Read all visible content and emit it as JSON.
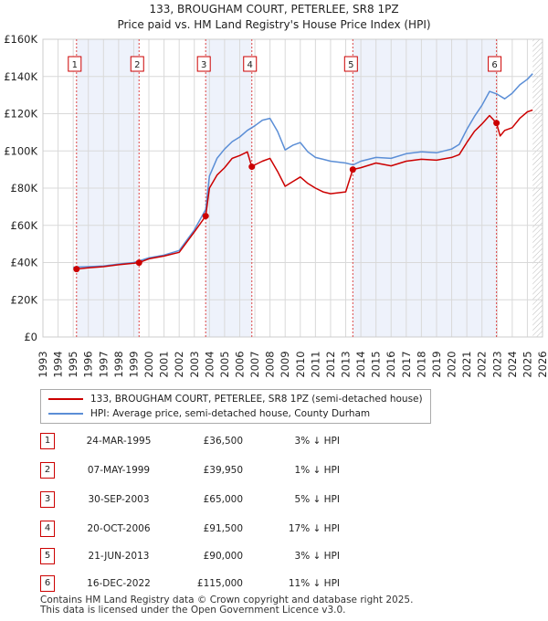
{
  "chart_data": {
    "type": "line",
    "title": "133, BROUGHAM COURT, PETERLEE, SR8 1PZ",
    "subtitle": "Price paid vs. HM Land Registry's House Price Index (HPI)",
    "x_range": [
      1993,
      2026
    ],
    "ylim": [
      0,
      160000
    ],
    "y_ticks": [
      0,
      20000,
      40000,
      60000,
      80000,
      100000,
      120000,
      140000,
      160000
    ],
    "y_tick_labels": [
      "£0",
      "£20K",
      "£40K",
      "£60K",
      "£80K",
      "£100K",
      "£120K",
      "£140K",
      "£160K"
    ],
    "x_ticks": [
      1993,
      1994,
      1995,
      1996,
      1997,
      1998,
      1999,
      2000,
      2001,
      2002,
      2003,
      2004,
      2005,
      2006,
      2007,
      2008,
      2009,
      2010,
      2011,
      2012,
      2013,
      2014,
      2015,
      2016,
      2017,
      2018,
      2019,
      2020,
      2021,
      2022,
      2023,
      2024,
      2025,
      2026
    ],
    "x_tick_labels": [
      "1993",
      "1994",
      "1995",
      "1996",
      "1997",
      "1998",
      "1999",
      "2000",
      "2001",
      "2002",
      "2003",
      "2004",
      "2005",
      "2006",
      "2007",
      "2008",
      "2009",
      "2010",
      "2011",
      "2012",
      "2013",
      "2014",
      "2015",
      "2016",
      "2017",
      "2018",
      "2019",
      "2020",
      "2021",
      "2022",
      "2023",
      "2024",
      "2025",
      "2026"
    ],
    "grid": true,
    "shaded_periods": [
      [
        1995.22,
        1999.35
      ],
      [
        2003.75,
        2006.8
      ],
      [
        2013.47,
        2022.96
      ]
    ],
    "shade_color": "#eef2fb",
    "data_end_x": 2025.35,
    "series": [
      {
        "name": "133, BROUGHAM COURT, PETERLEE, SR8 1PZ (semi-detached house)",
        "color": "#cc0000",
        "x": [
          1995.22,
          1996.0,
          1997.0,
          1998.0,
          1999.0,
          1999.35,
          2000.0,
          2001.0,
          2002.0,
          2003.0,
          2003.75,
          2004.0,
          2004.5,
          2005.0,
          2005.5,
          2006.0,
          2006.5,
          2006.8,
          2007.0,
          2007.5,
          2008.0,
          2008.5,
          2009.0,
          2009.5,
          2010.0,
          2010.5,
          2011.0,
          2011.5,
          2012.0,
          2012.5,
          2013.0,
          2013.47,
          2014.0,
          2015.0,
          2016.0,
          2017.0,
          2018.0,
          2019.0,
          2020.0,
          2020.5,
          2021.0,
          2021.5,
          2022.0,
          2022.5,
          2022.96,
          2023.2,
          2023.5,
          2024.0,
          2024.5,
          2025.0,
          2025.35
        ],
        "y": [
          36500,
          37200,
          37800,
          38800,
          39600,
          39950,
          42000,
          43500,
          45500,
          56500,
          65000,
          80000,
          87000,
          91000,
          96000,
          97500,
          99500,
          91500,
          92500,
          94500,
          96000,
          89000,
          81000,
          83500,
          86000,
          82500,
          80000,
          78000,
          77000,
          77500,
          78000,
          90000,
          91000,
          93500,
          92000,
          94500,
          95500,
          95000,
          96500,
          98000,
          104500,
          110500,
          114500,
          119000,
          115000,
          108000,
          111000,
          112500,
          117500,
          121000,
          122000
        ]
      },
      {
        "name": "HPI: Average price, semi-detached house, County Durham",
        "color": "#5b8ed6",
        "x": [
          1995.0,
          1996.0,
          1997.0,
          1998.0,
          1999.0,
          2000.0,
          2001.0,
          2002.0,
          2003.0,
          2003.75,
          2004.0,
          2004.5,
          2005.0,
          2005.5,
          2006.0,
          2006.5,
          2007.0,
          2007.5,
          2008.0,
          2008.5,
          2009.0,
          2009.5,
          2010.0,
          2010.5,
          2011.0,
          2011.5,
          2012.0,
          2012.5,
          2013.0,
          2013.5,
          2014.0,
          2015.0,
          2016.0,
          2017.0,
          2018.0,
          2019.0,
          2020.0,
          2020.5,
          2021.0,
          2021.5,
          2022.0,
          2022.5,
          2023.0,
          2023.5,
          2024.0,
          2024.5,
          2025.0,
          2025.35
        ],
        "y": [
          37500,
          37800,
          38200,
          39200,
          40000,
          42500,
          44000,
          46500,
          57500,
          68500,
          86500,
          96000,
          101000,
          105000,
          107500,
          111000,
          113500,
          116500,
          117500,
          110500,
          100500,
          103000,
          104500,
          99500,
          96500,
          95500,
          94500,
          94000,
          93500,
          92500,
          94500,
          96500,
          96000,
          98500,
          99500,
          99000,
          101000,
          103500,
          111500,
          118500,
          124500,
          132000,
          130500,
          128000,
          131000,
          135500,
          138500,
          141500
        ]
      }
    ],
    "sales": [
      {
        "label": "1",
        "x": 1995.22,
        "y": 36500
      },
      {
        "label": "2",
        "x": 1999.35,
        "y": 39950
      },
      {
        "label": "3",
        "x": 2003.75,
        "y": 65000
      },
      {
        "label": "4",
        "x": 2006.8,
        "y": 91500
      },
      {
        "label": "5",
        "x": 2013.47,
        "y": 90000
      },
      {
        "label": "6",
        "x": 2022.96,
        "y": 115000
      }
    ]
  },
  "legend": {
    "property_label": "133, BROUGHAM COURT, PETERLEE, SR8 1PZ (semi-detached house)",
    "hpi_label": "HPI: Average price, semi-detached house, County Durham"
  },
  "transactions": [
    {
      "n": "1",
      "date": "24-MAR-1995",
      "price": "£36,500",
      "hpi": "3% ↓ HPI"
    },
    {
      "n": "2",
      "date": "07-MAY-1999",
      "price": "£39,950",
      "hpi": "1% ↓ HPI"
    },
    {
      "n": "3",
      "date": "30-SEP-2003",
      "price": "£65,000",
      "hpi": "5% ↓ HPI"
    },
    {
      "n": "4",
      "date": "20-OCT-2006",
      "price": "£91,500",
      "hpi": "17% ↓ HPI"
    },
    {
      "n": "5",
      "date": "21-JUN-2013",
      "price": "£90,000",
      "hpi": "3% ↓ HPI"
    },
    {
      "n": "6",
      "date": "16-DEC-2022",
      "price": "£115,000",
      "hpi": "11% ↓ HPI"
    }
  ],
  "footer": {
    "line1": "Contains HM Land Registry data © Crown copyright and database right 2025.",
    "line2": "This data is licensed under the Open Government Licence v3.0."
  }
}
